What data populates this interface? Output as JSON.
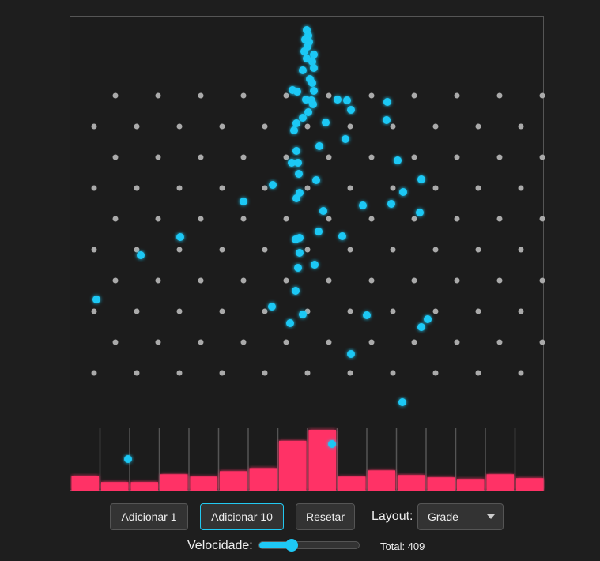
{
  "controls": {
    "add1_label": "Adicionar 1",
    "add10_label": "Adicionar 10",
    "reset_label": "Resetar",
    "layout_label": "Layout:",
    "layout_value": "Grade",
    "speed_label": "Velocidade:",
    "speed_value": 0.3,
    "total_text": "Total: 409"
  },
  "histogram": {
    "bin_counts": [
      19,
      11,
      11,
      21,
      18,
      25,
      29,
      64,
      78,
      18,
      26,
      20,
      17,
      15,
      21,
      16
    ]
  },
  "colors": {
    "ball": "#1ec8f5",
    "bar": "#ff3366",
    "peg": "#aaaaaa"
  }
}
